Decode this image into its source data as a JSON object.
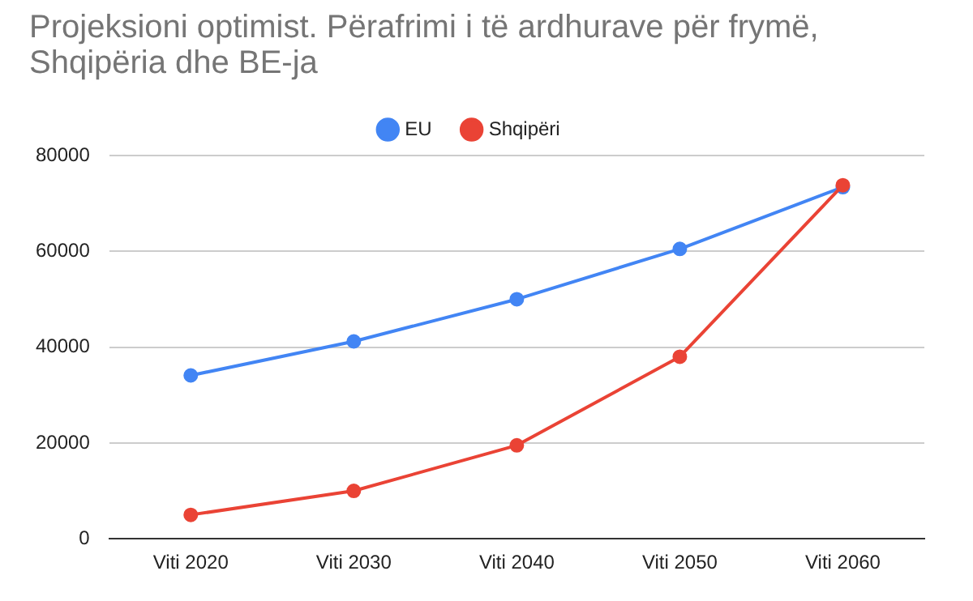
{
  "chart_data": {
    "type": "line",
    "title": "Projeksioni optimist. Përafrimi i të ardhurave për frymë, Shqipëria dhe BE-ja",
    "categories": [
      "Viti 2020",
      "Viti 2030",
      "Viti 2040",
      "Viti 2050",
      "Viti 2060"
    ],
    "series": [
      {
        "name": "EU",
        "color": "#4285f4",
        "values": [
          34100,
          41200,
          50000,
          60500,
          73400
        ]
      },
      {
        "name": "Shqipëri",
        "color": "#ea4335",
        "values": [
          5000,
          10000,
          19500,
          38000,
          73800
        ]
      }
    ],
    "ylim": [
      0,
      80000
    ],
    "yticks": [
      0,
      20000,
      40000,
      60000,
      80000
    ],
    "grid": "y",
    "legend": "top",
    "marker": "circle",
    "line_style": "solid"
  }
}
